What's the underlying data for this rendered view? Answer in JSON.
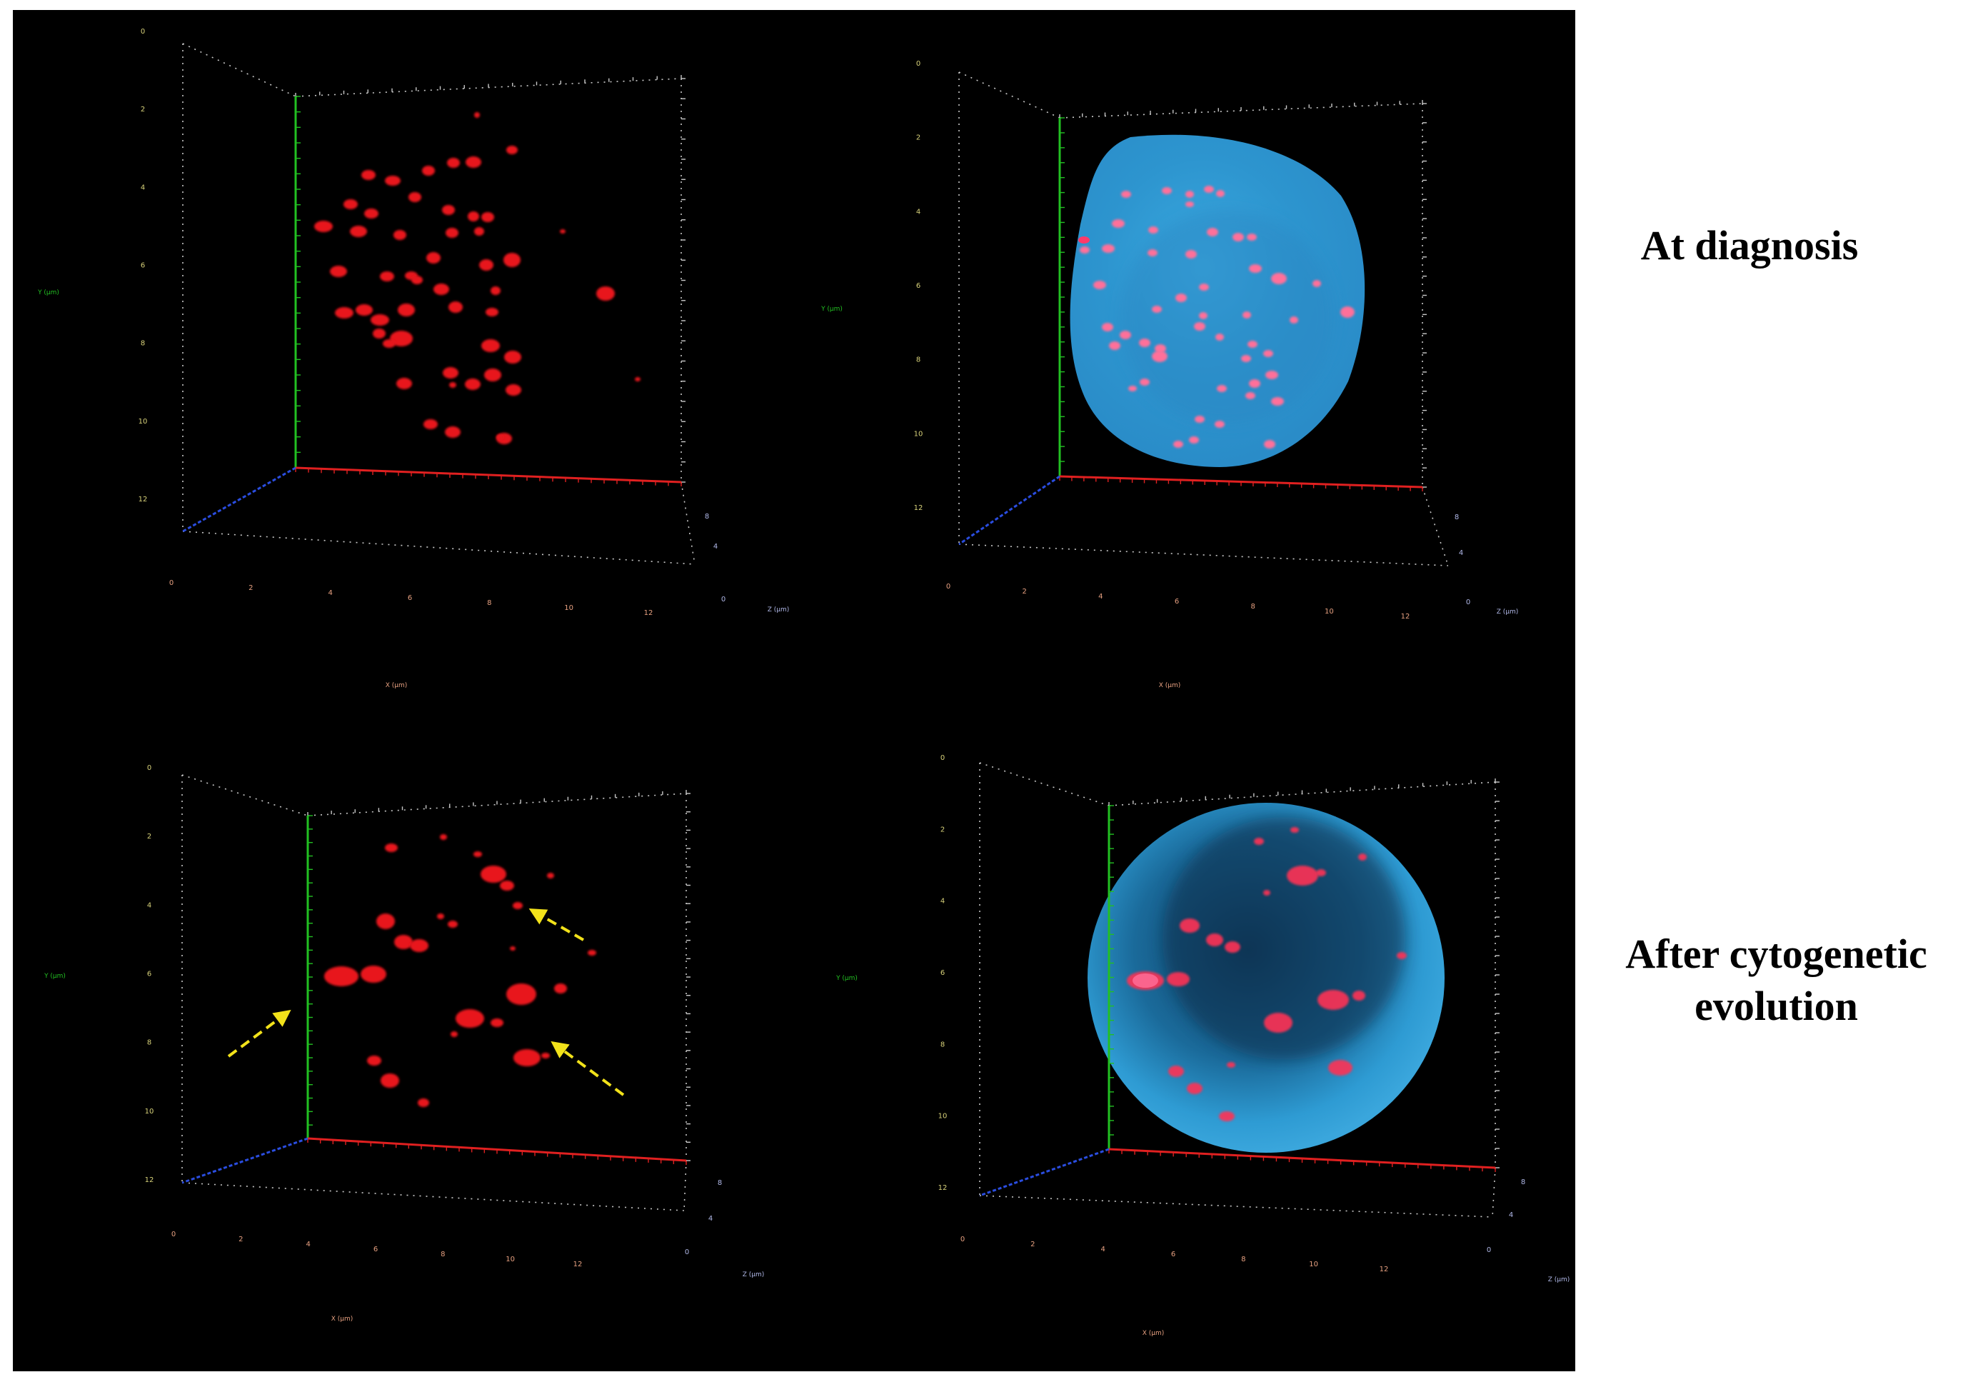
{
  "labels": {
    "row_top": "At diagnosis",
    "row_bottom_line1": "After cytogenetic",
    "row_bottom_line2": "evolution"
  },
  "panels": [
    {
      "id": "top-left",
      "row": "At diagnosis",
      "channels": [
        "red-signals"
      ],
      "axis_titles": {
        "x": "X (µm)",
        "y": "Y (µm)",
        "z": "Z (µm)"
      },
      "x_ticks": [
        "0",
        "2",
        "4",
        "6",
        "8",
        "10",
        "12"
      ],
      "y_ticks": [
        "0",
        "2",
        "4",
        "6",
        "8",
        "10",
        "12"
      ],
      "z_ticks": [
        "8",
        "4",
        "0"
      ]
    },
    {
      "id": "top-right",
      "row": "At diagnosis",
      "channels": [
        "red-signals",
        "blue-nucleus"
      ],
      "axis_titles": {
        "x": "X (µm)",
        "y": "Y (µm)",
        "z": "Z (µm)"
      },
      "x_ticks": [
        "0",
        "2",
        "4",
        "6",
        "8",
        "10",
        "12"
      ],
      "y_ticks": [
        "0",
        "2",
        "4",
        "6",
        "8",
        "10",
        "12"
      ],
      "z_ticks": [
        "8",
        "4",
        "0"
      ]
    },
    {
      "id": "bottom-left",
      "row": "After cytogenetic evolution",
      "channels": [
        "red-signals"
      ],
      "annotations": "3 yellow dashed arrows",
      "axis_titles": {
        "x": "X (µm)",
        "y": "Y (µm)",
        "z": "Z (µm)"
      },
      "x_ticks": [
        "0",
        "2",
        "4",
        "6",
        "8",
        "10",
        "12"
      ],
      "y_ticks": [
        "0",
        "2",
        "4",
        "6",
        "8",
        "10",
        "12"
      ],
      "z_ticks": [
        "8",
        "4",
        "0"
      ]
    },
    {
      "id": "bottom-right",
      "row": "After cytogenetic evolution",
      "channels": [
        "red-signals",
        "blue-nucleus"
      ],
      "axis_titles": {
        "x": "X (µm)",
        "y": "Y (µm)",
        "z": "Z (µm)"
      },
      "x_ticks": [
        "0",
        "2",
        "4",
        "6",
        "8",
        "10",
        "12"
      ],
      "y_ticks": [
        "0",
        "2",
        "4",
        "6",
        "8",
        "10",
        "12"
      ],
      "z_ticks": [
        "8",
        "4",
        "0"
      ]
    }
  ],
  "colors": {
    "background": "#000000",
    "signal_red": "#e8141c",
    "signal_pink": "#ff6f9a",
    "nucleus_blue": "#2f9fd6",
    "x_axis": "#e02020",
    "y_axis": "#22c022",
    "z_axis": "#2a4de0",
    "arrow": "#f2e21a",
    "x_tick_label": "#e6a080",
    "y_tick_label": "#d8d27a",
    "z_tick_label": "#b0b8e8"
  }
}
